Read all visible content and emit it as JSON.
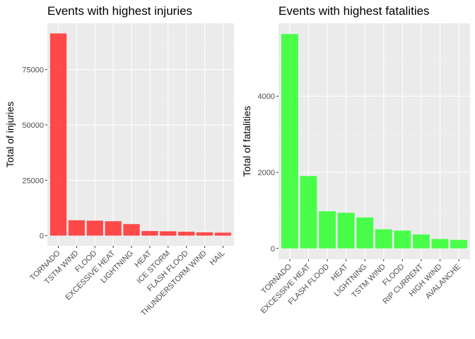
{
  "chart_data": [
    {
      "type": "bar",
      "title": "Events with highest injuries",
      "xlabel": "",
      "ylabel": "Total of injuries",
      "categories": [
        "TORNADO",
        "TSTM WIND",
        "FLOOD",
        "EXCESSIVE HEAT",
        "LIGHTNING",
        "HEAT",
        "ICE STORM",
        "FLASH FLOOD",
        "THUNDERSTORM WIND",
        "HAIL"
      ],
      "values": [
        91346,
        6957,
        6789,
        6525,
        5230,
        2100,
        1975,
        1777,
        1488,
        1361
      ],
      "ylim": [
        -4570,
        95920
      ],
      "yticks": [
        0,
        25000,
        50000,
        75000
      ],
      "ytick_labels": [
        "0",
        "25000",
        "50000",
        "75000"
      ],
      "bar_color": "#FF3B3B",
      "grid": true,
      "panel_background": "#EBEBEB"
    },
    {
      "type": "bar",
      "title": "Events with highest fatalities",
      "xlabel": "",
      "ylabel": "Total of fatalities",
      "categories": [
        "TORNADO",
        "EXCESSIVE HEAT",
        "FLASH FLOOD",
        "HEAT",
        "LIGHTNING",
        "TSTM WIND",
        "FLOOD",
        "RIP CURRENT",
        "HIGH WIND",
        "AVALANCHE"
      ],
      "values": [
        5633,
        1903,
        978,
        937,
        816,
        504,
        470,
        368,
        248,
        224
      ],
      "ylim": [
        -282,
        5915
      ],
      "yticks": [
        0,
        2000,
        4000
      ],
      "ytick_labels": [
        "0",
        "2000",
        "4000"
      ],
      "bar_color": "#3BFF3B",
      "grid": true,
      "panel_background": "#EBEBEB"
    }
  ]
}
